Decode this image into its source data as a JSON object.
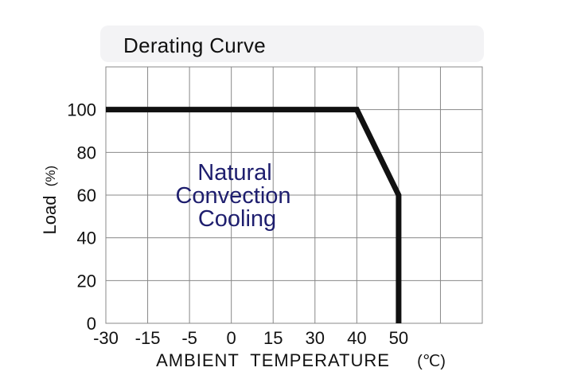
{
  "chart_data": {
    "type": "line",
    "title": "Derating Curve",
    "xlabel": "AMBIENT  TEMPERATURE",
    "xlabel_unit": "(℃)",
    "ylabel": "Load",
    "ylabel_unit": "(%)",
    "x_ticks": [
      "-30",
      "-15",
      "-5",
      "0",
      "15",
      "30",
      "40",
      "50"
    ],
    "y_ticks": [
      "0",
      "20",
      "40",
      "60",
      "80",
      "100"
    ],
    "grid": true,
    "ylim": [
      0,
      120
    ],
    "series": [
      {
        "points": [
          {
            "x": "-30",
            "y": 100
          },
          {
            "x": "40",
            "y": 100
          },
          {
            "x": "50",
            "y": 60
          },
          {
            "x": "50",
            "y": 0
          }
        ]
      }
    ],
    "annotation_lines": [
      "Natural",
      "Convection",
      "Cooling"
    ],
    "colors": {
      "curve": "#111111",
      "grid": "#888888",
      "annotation": "#1e1e6e",
      "axis_text": "#111111"
    }
  }
}
